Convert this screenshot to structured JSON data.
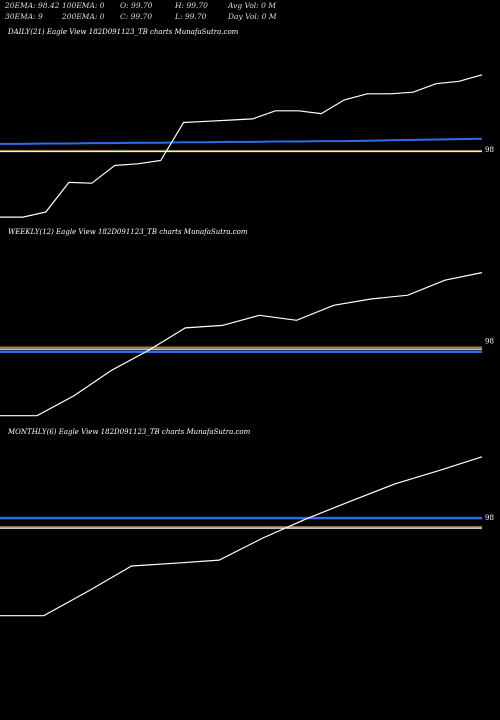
{
  "header": {
    "row1": {
      "ema20": "20EMA: 98.42",
      "ema100": "100EMA: 0",
      "open": "O: 99.70",
      "high": "H: 99.70",
      "avgvol": "Avg Vol: 0  M"
    },
    "row2": {
      "ema30": "30EMA: 9",
      "ema200": "200EMA: 0",
      "close": "C: 99.70",
      "low": "L: 99.70",
      "dayvol": "Day Vol: 0  M"
    }
  },
  "chart_data": [
    {
      "type": "line",
      "title": "DAILY(21) Eagle  View  182D091123_TB charts MunafaSutra.com",
      "y_tick_label": "98",
      "y_tick_value": 98,
      "ylim": [
        96.2,
        100.7
      ],
      "price": [
        96.32,
        96.32,
        96.45,
        97.18,
        97.16,
        97.6,
        97.64,
        97.72,
        98.66,
        98.69,
        98.72,
        98.75,
        98.95,
        98.95,
        98.88,
        99.22,
        99.37,
        99.37,
        99.41,
        99.62,
        99.68,
        99.84
      ],
      "ema_blue": [
        98.13,
        98.13,
        98.14,
        98.14,
        98.15,
        98.15,
        98.16,
        98.16,
        98.17,
        98.17,
        98.18,
        98.18,
        98.19,
        98.19,
        98.2,
        98.2,
        98.21,
        98.22,
        98.23,
        98.24,
        98.25,
        98.26
      ],
      "ema_tan": 97.96,
      "ema_white": 97.94
    },
    {
      "type": "line",
      "title": "WEEKLY(12) Eagle  View  182D091123_TB charts MunafaSutra.com",
      "y_tick_label": "98",
      "y_tick_value": 98,
      "ylim": [
        94.75,
        102.0
      ],
      "price": [
        95.0,
        95.0,
        95.8,
        96.8,
        97.6,
        98.5,
        98.6,
        99.0,
        98.8,
        99.4,
        99.65,
        99.8,
        100.4,
        100.7
      ],
      "ema_blue": [
        97.55,
        97.55,
        97.55,
        97.55,
        97.55,
        97.55,
        97.55,
        97.55,
        97.55,
        97.55,
        97.55,
        97.55,
        97.55,
        97.55
      ],
      "ema_tan": 97.72,
      "ema_white": 97.65
    },
    {
      "type": "line",
      "title": "MONTHLY(6) Eagle  View  182D091123_TB charts MunafaSutra.com",
      "y_tick_label": "98",
      "y_tick_value": 98,
      "ylim": [
        95.0,
        100.2
      ],
      "price": [
        95.18,
        95.18,
        95.87,
        96.6,
        96.68,
        96.77,
        97.4,
        97.95,
        98.45,
        98.94,
        99.32,
        99.72
      ],
      "ema_blue": [
        97.97,
        97.97,
        97.97,
        97.97,
        97.97,
        97.97,
        97.97,
        97.97,
        97.97,
        97.97,
        97.97,
        97.97
      ],
      "ema_tan": 97.71,
      "ema_white": 97.68
    }
  ]
}
